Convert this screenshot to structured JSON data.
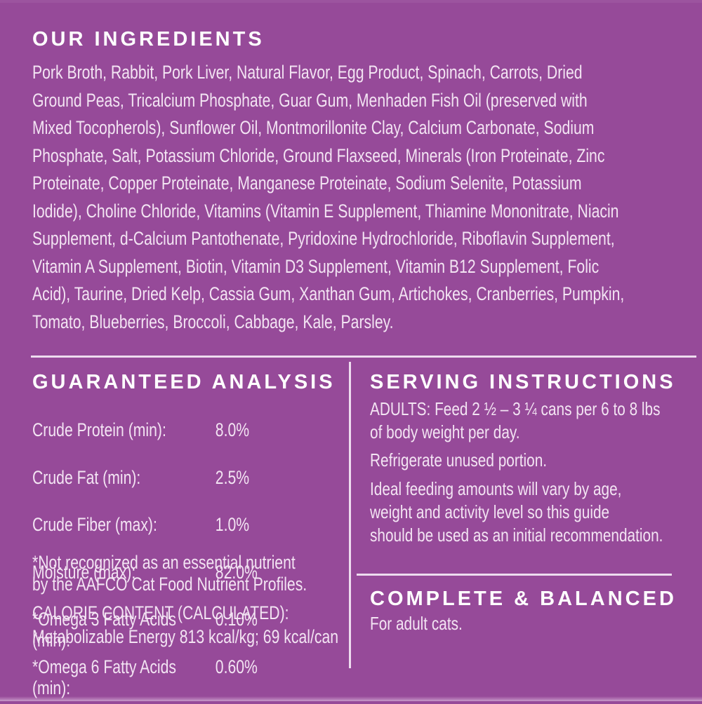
{
  "palette": {
    "background": "#964a99",
    "body_text": "#f3e4f3",
    "heading_text": "#ffffff",
    "divider": "#eedcef"
  },
  "ingredients": {
    "title": "OUR INGREDIENTS",
    "text": "Pork Broth, Rabbit, Pork Liver, Natural Flavor, Egg Product, Spinach, Carrots, Dried\nGround Peas, Tricalcium Phosphate, Guar Gum, Menhaden Fish Oil (preserved with\nMixed Tocopherols), Sunflower Oil, Montmorillonite Clay, Calcium Carbonate, Sodium\nPhosphate, Salt, Potassium Chloride, Ground Flaxseed, Minerals (Iron Proteinate, Zinc\nProteinate, Copper Proteinate, Manganese Proteinate, Sodium Selenite, Potassium\nIodide), Choline Chloride, Vitamins (Vitamin E Supplement, Thiamine Mononitrate, Niacin\nSupplement, d-Calcium Pantothenate, Pyridoxine Hydrochloride, Riboflavin Supplement,\nVitamin A Supplement, Biotin, Vitamin D3 Supplement, Vitamin B12 Supplement, Folic\nAcid), Taurine, Dried Kelp, Cassia Gum, Xanthan Gum, Artichokes, Cranberries, Pumpkin,\nTomato, Blueberries, Broccoli, Cabbage, Kale, Parsley."
  },
  "guaranteed_analysis": {
    "title": "GUARANTEED ANALYSIS",
    "rows": [
      {
        "label": "Crude Protein (min):",
        "value": "8.0%"
      },
      {
        "label": "Crude Fat (min):",
        "value": "2.5%"
      },
      {
        "label": "Crude Fiber (max):",
        "value": "1.0%"
      },
      {
        "label": "Moisture (max):",
        "value": "82.0%"
      },
      {
        "label": "*Omega 3 Fatty Acids (min):",
        "value": "0.10%"
      },
      {
        "label": "*Omega 6 Fatty Acids (min):",
        "value": "0.60%"
      }
    ],
    "footnote": "*Not recognized as an essential nutrient\n by the AAFCO Cat Food Nutrient Profiles.",
    "calorie_content": "CALORIE CONTENT (CALCULATED):\nMetabolizable Energy 813 kcal/kg; 69 kcal/can"
  },
  "serving_instructions": {
    "title": "SERVING INSTRUCTIONS",
    "adults": "ADULTS: Feed 2 ½ – 3 ¼ cans per 6 to 8 lbs\nof body weight per day.",
    "refrigerate": "Refrigerate unused portion.",
    "ideal": "Ideal feeding amounts will vary by age,\nweight and activity level so this guide\nshould be used as an initial recommendation."
  },
  "complete_balanced": {
    "title": "COMPLETE & BALANCED",
    "subtitle": "For adult cats."
  }
}
